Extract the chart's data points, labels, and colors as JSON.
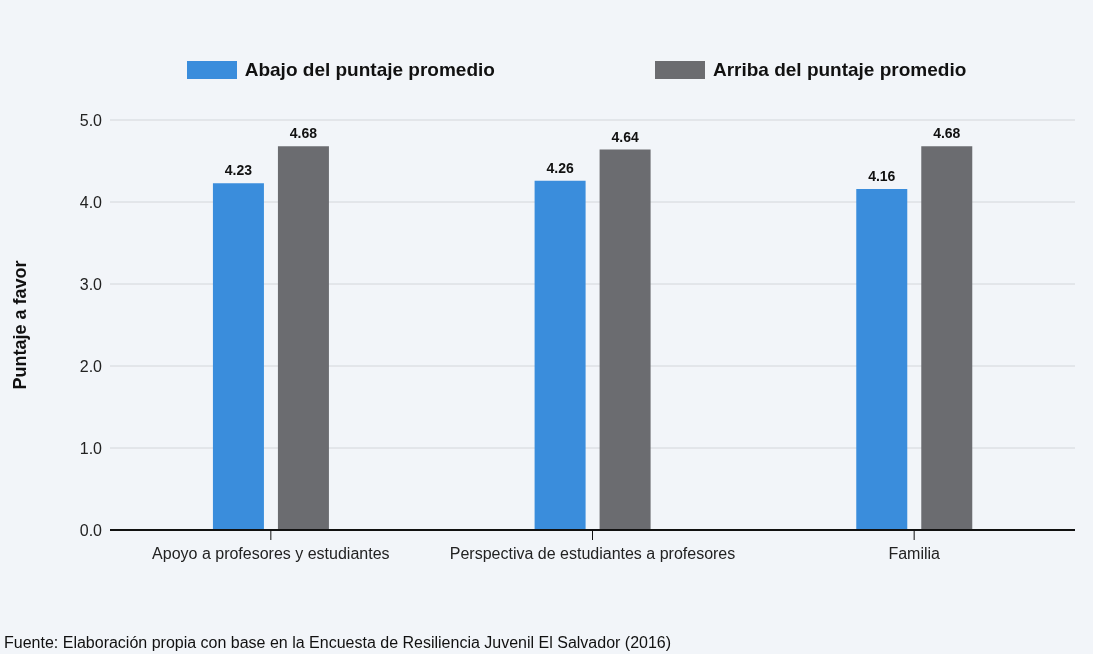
{
  "chart_data": {
    "type": "bar",
    "ylabel": "Puntaje a favor",
    "categories": [
      "Apoyo a profesores y estudiantes",
      "Perspectiva de estudiantes a profesores",
      "Familia"
    ],
    "series": [
      {
        "name": "Abajo del puntaje promedio",
        "color": "#3a8ddc",
        "values": [
          4.23,
          4.26,
          4.16
        ]
      },
      {
        "name": "Arriba del puntaje promedio",
        "color": "#6b6c70",
        "values": [
          4.68,
          4.64,
          4.68
        ]
      }
    ],
    "ylim": [
      0,
      5
    ],
    "yticks": [
      {
        "value": 0,
        "label": "0.0"
      },
      {
        "value": 1,
        "label": "1.0"
      },
      {
        "value": 2,
        "label": "2.0"
      },
      {
        "value": 3,
        "label": "3.0"
      },
      {
        "value": 4,
        "label": "4.0"
      },
      {
        "value": 5,
        "label": "5.0"
      }
    ],
    "grid": "y",
    "legend": "top",
    "data_labels": true,
    "annotations": [
      "Fuente: Elaboración propia con base en la Encuesta de Resiliencia Juvenil El Salvador (2016)"
    ]
  }
}
